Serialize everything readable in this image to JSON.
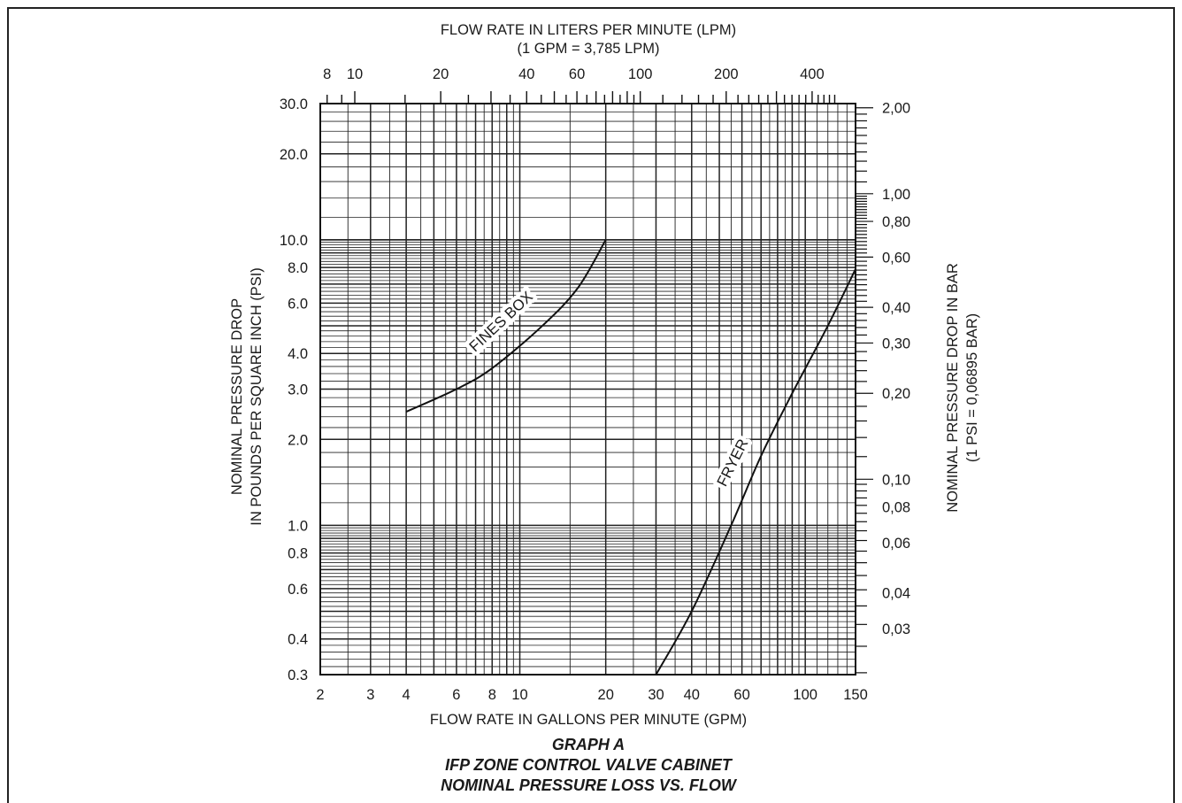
{
  "chart_data": {
    "type": "line",
    "x_scale": "log",
    "y_scale": "log",
    "xlim": [
      2,
      150
    ],
    "ylim": [
      0.3,
      30.0
    ],
    "grid": true,
    "xlabel": "FLOW RATE IN GALLONS PER MINUTE (GPM)",
    "ylabel_lines": [
      "NOMINAL PRESSURE DROP",
      "IN POUNDS PER SQUARE INCH (PSI)"
    ],
    "top_label_lines": [
      "FLOW RATE IN LITERS PER MINUTE (LPM)",
      "(1 GPM = 3,785 LPM)"
    ],
    "right_label_lines": [
      "NOMINAL PRESSURE DROP IN BAR",
      "(1 PSI = 0,06895 BAR)"
    ],
    "x_ticks": [
      {
        "v": 2,
        "label": "2"
      },
      {
        "v": 3,
        "label": "3"
      },
      {
        "v": 4,
        "label": "4"
      },
      {
        "v": 6,
        "label": "6"
      },
      {
        "v": 8,
        "label": "8"
      },
      {
        "v": 10,
        "label": "10"
      },
      {
        "v": 20,
        "label": "20"
      },
      {
        "v": 30,
        "label": "30"
      },
      {
        "v": 40,
        "label": "40"
      },
      {
        "v": 60,
        "label": "60"
      },
      {
        "v": 100,
        "label": "100"
      },
      {
        "v": 150,
        "label": "150"
      }
    ],
    "y_ticks": [
      {
        "v": 0.3,
        "label": "0.3"
      },
      {
        "v": 0.4,
        "label": "0.4"
      },
      {
        "v": 0.6,
        "label": "0.6"
      },
      {
        "v": 0.8,
        "label": "0.8"
      },
      {
        "v": 1.0,
        "label": "1.0"
      },
      {
        "v": 2.0,
        "label": "2.0"
      },
      {
        "v": 3.0,
        "label": "3.0"
      },
      {
        "v": 4.0,
        "label": "4.0"
      },
      {
        "v": 6.0,
        "label": "6.0"
      },
      {
        "v": 8.0,
        "label": "8.0"
      },
      {
        "v": 10.0,
        "label": "10.0"
      },
      {
        "v": 20.0,
        "label": "20.0"
      },
      {
        "v": 30.0,
        "label": "30.0"
      }
    ],
    "top_ticks": [
      {
        "v": 8,
        "label": "8"
      },
      {
        "v": 10,
        "label": "10"
      },
      {
        "v": 20,
        "label": "20"
      },
      {
        "v": 40,
        "label": "40"
      },
      {
        "v": 60,
        "label": "60"
      },
      {
        "v": 100,
        "label": "100"
      },
      {
        "v": 200,
        "label": "200"
      },
      {
        "v": 400,
        "label": "400"
      }
    ],
    "right_ticks": [
      {
        "v": 2.0,
        "label": "2,00"
      },
      {
        "v": 1.0,
        "label": "1,00"
      },
      {
        "v": 0.8,
        "label": "0,80"
      },
      {
        "v": 0.6,
        "label": "0,60"
      },
      {
        "v": 0.4,
        "label": "0,40"
      },
      {
        "v": 0.3,
        "label": "0,30"
      },
      {
        "v": 0.2,
        "label": "0,20"
      },
      {
        "v": 0.1,
        "label": "0,10"
      },
      {
        "v": 0.08,
        "label": "0,08"
      },
      {
        "v": 0.06,
        "label": "0,06"
      },
      {
        "v": 0.04,
        "label": "0,04"
      },
      {
        "v": 0.03,
        "label": "0,03"
      }
    ],
    "series": [
      {
        "name": "FINES BOX",
        "x": [
          4,
          6,
          8,
          12,
          16,
          20
        ],
        "y": [
          2.5,
          3.0,
          3.55,
          5.0,
          6.8,
          10.0
        ]
      },
      {
        "name": "FRYER",
        "x": [
          30,
          40,
          55,
          70,
          90,
          120,
          150
        ],
        "y": [
          0.3,
          0.5,
          1.0,
          1.75,
          2.9,
          5.0,
          7.9
        ]
      }
    ]
  },
  "caption": {
    "line1": "GRAPH A",
    "line2": "IFP ZONE CONTROL VALVE CABINET",
    "line3": "NOMINAL PRESSURE LOSS VS. FLOW"
  },
  "colors": {
    "ink": "#1a1a1a",
    "paper": "#ffffff"
  }
}
